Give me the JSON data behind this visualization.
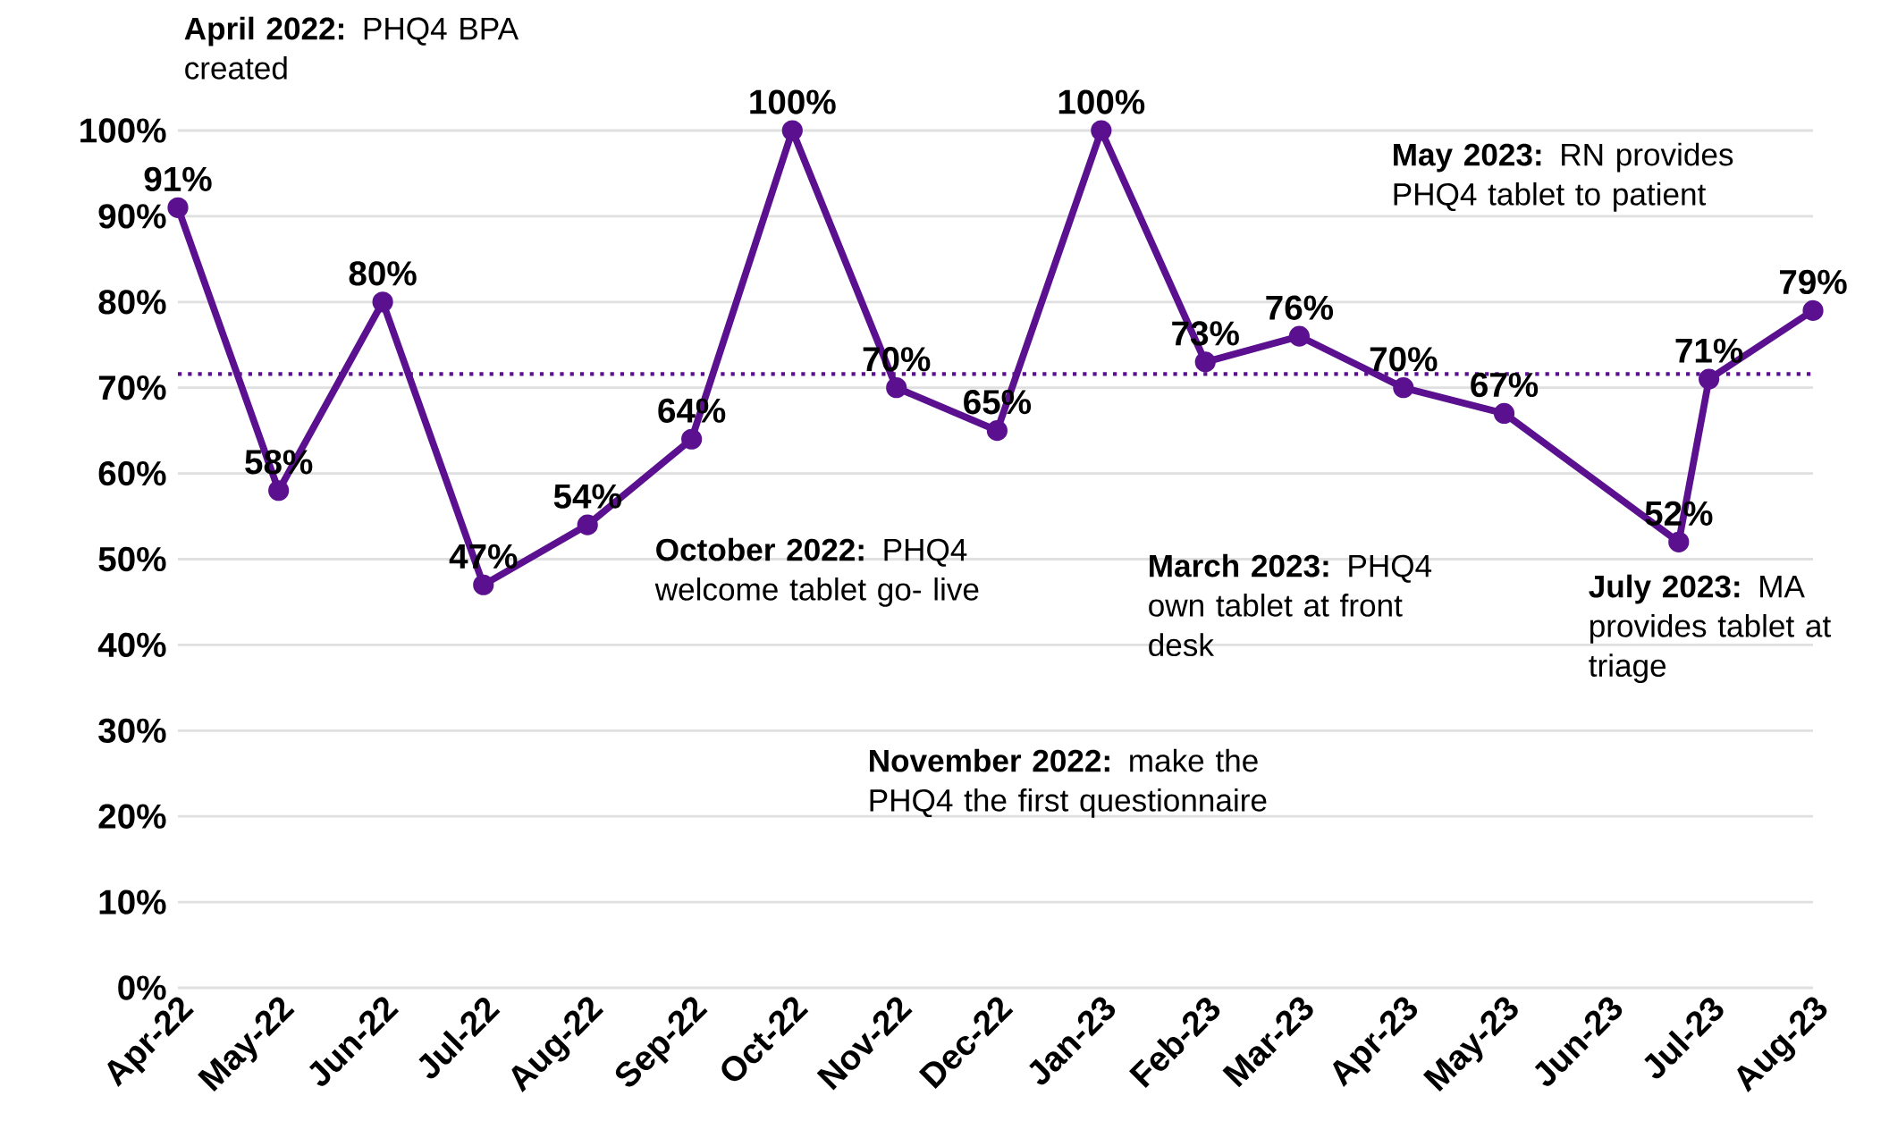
{
  "chart_data": {
    "type": "line",
    "x": [
      "2022-04",
      "2022-05",
      "2022-06",
      "2022-07",
      "2022-08",
      "2022-09",
      "2022-10",
      "2022-11",
      "2022-12",
      "2023-01",
      "2023-02",
      "2023-03",
      "2023-04",
      "2023-05",
      "2023-06-22",
      "2023-07",
      "2023-08"
    ],
    "series": [
      {
        "color": "#5b118f",
        "values": [
          91,
          58,
          80,
          47,
          54,
          64,
          100,
          70,
          65,
          100,
          73,
          76,
          70,
          67,
          52,
          71,
          79
        ],
        "value_labels": [
          "91%",
          "58%",
          "80%",
          "47%",
          "54%",
          "64%",
          "100%",
          "70%",
          "65%",
          "100%",
          "73%",
          "76%",
          "70%",
          "67%",
          "52%",
          "71%",
          "79%"
        ]
      }
    ],
    "xlim": [
      "2022-04",
      "2023-08"
    ],
    "xticks": [
      {
        "value": "2022-04",
        "label": "Apr-22"
      },
      {
        "value": "2022-05",
        "label": "May-22"
      },
      {
        "value": "2022-06",
        "label": "Jun-22"
      },
      {
        "value": "2022-07",
        "label": "Jul-22"
      },
      {
        "value": "2022-08",
        "label": "Aug-22"
      },
      {
        "value": "2022-09",
        "label": "Sep-22"
      },
      {
        "value": "2022-10",
        "label": "Oct-22"
      },
      {
        "value": "2022-11",
        "label": "Nov-22"
      },
      {
        "value": "2022-12",
        "label": "Dec-22"
      },
      {
        "value": "2023-01",
        "label": "Jan-23"
      },
      {
        "value": "2023-02",
        "label": "Feb-23"
      },
      {
        "value": "2023-03",
        "label": "Mar-23"
      },
      {
        "value": "2023-04",
        "label": "Apr-23"
      },
      {
        "value": "2023-05",
        "label": "May-23"
      },
      {
        "value": "2023-06",
        "label": "Jun-23"
      },
      {
        "value": "2023-07",
        "label": "Jul-23"
      },
      {
        "value": "2023-08",
        "label": "Aug-23"
      }
    ],
    "ylim": [
      0,
      100
    ],
    "yticks": [
      {
        "value": 0,
        "label": "0%"
      },
      {
        "value": 10,
        "label": "10%"
      },
      {
        "value": 20,
        "label": "20%"
      },
      {
        "value": 30,
        "label": "30%"
      },
      {
        "value": 40,
        "label": "40%"
      },
      {
        "value": 50,
        "label": "50%"
      },
      {
        "value": 60,
        "label": "60%"
      },
      {
        "value": 70,
        "label": "70%"
      },
      {
        "value": 80,
        "label": "80%"
      },
      {
        "value": 90,
        "label": "90%"
      },
      {
        "value": 100,
        "label": "100%"
      }
    ],
    "grid": "y",
    "marker": "circle",
    "line_style": "solid",
    "ref_lines": [
      {
        "axis": "y",
        "value": 71.6,
        "color": "#5b118f",
        "line_style": "dotted"
      }
    ],
    "annotations": [
      "**April 2022:** PHQ4 BPA created",
      "**October 2022:** PHQ4 welcome tablet go- live",
      "**November 2022:** make the PHQ4 the first questionnaire",
      "**March 2023:** PHQ4 own tablet at front desk",
      "**May 2023:** RN provides PHQ4 tablet to patient",
      "**July 2023:** MA provides tablet at triage"
    ]
  }
}
